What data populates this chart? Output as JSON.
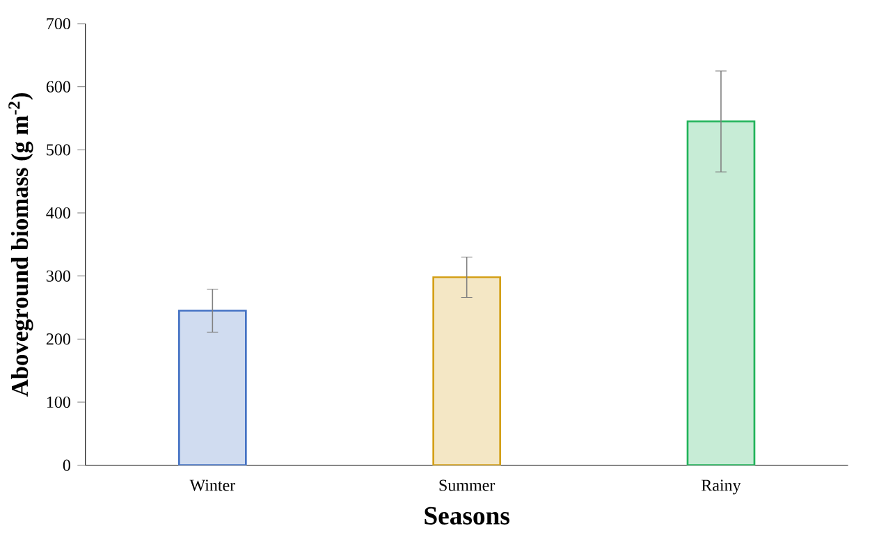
{
  "chart_data": {
    "type": "bar",
    "xlabel": "Seasons",
    "ylabel": "Aboveground biomass (g m$^{-2}$)",
    "categories": [
      "Winter",
      "Summer",
      "Rainy"
    ],
    "values": [
      245,
      298,
      545
    ],
    "errors": [
      34,
      32,
      80
    ],
    "colors": [
      "#4472c4",
      "#d4a017",
      "#21b35a"
    ],
    "ylim": [
      0,
      700
    ],
    "yticks": [
      0,
      100,
      200,
      300,
      400,
      500,
      600,
      700
    ]
  }
}
